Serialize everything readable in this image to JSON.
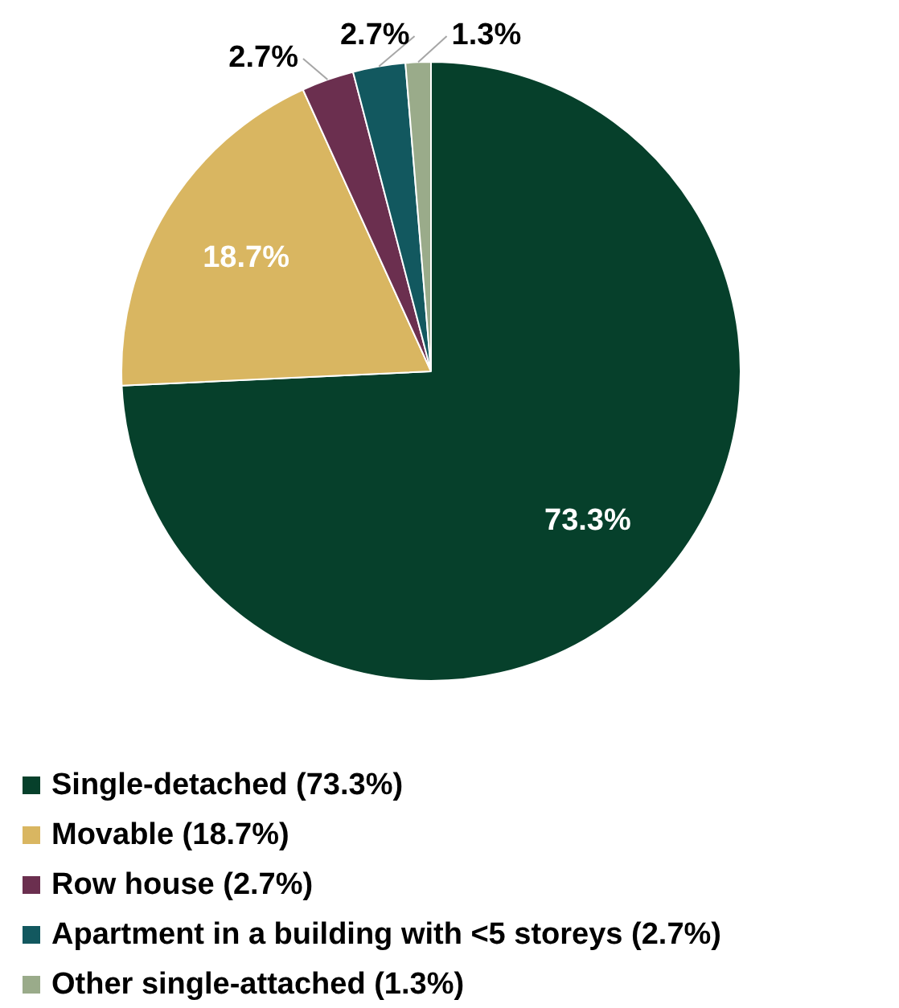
{
  "chart_data": {
    "type": "pie",
    "categories": [
      "Single-detached (73.3%)",
      "Movable (18.7%)",
      "Row house (2.7%)",
      "Apartment in a building with <5 storeys (2.7%)",
      "Other single-attached (1.3%)"
    ],
    "values": [
      73.3,
      18.7,
      2.7,
      2.7,
      1.3
    ],
    "colors": [
      "#06402b",
      "#d9b661",
      "#6b2f4f",
      "#12585f",
      "#9aab8a"
    ],
    "value_labels": [
      "73.3%",
      "18.7%",
      "2.7%",
      "2.7%",
      "1.3%"
    ],
    "legend": "bottom"
  }
}
